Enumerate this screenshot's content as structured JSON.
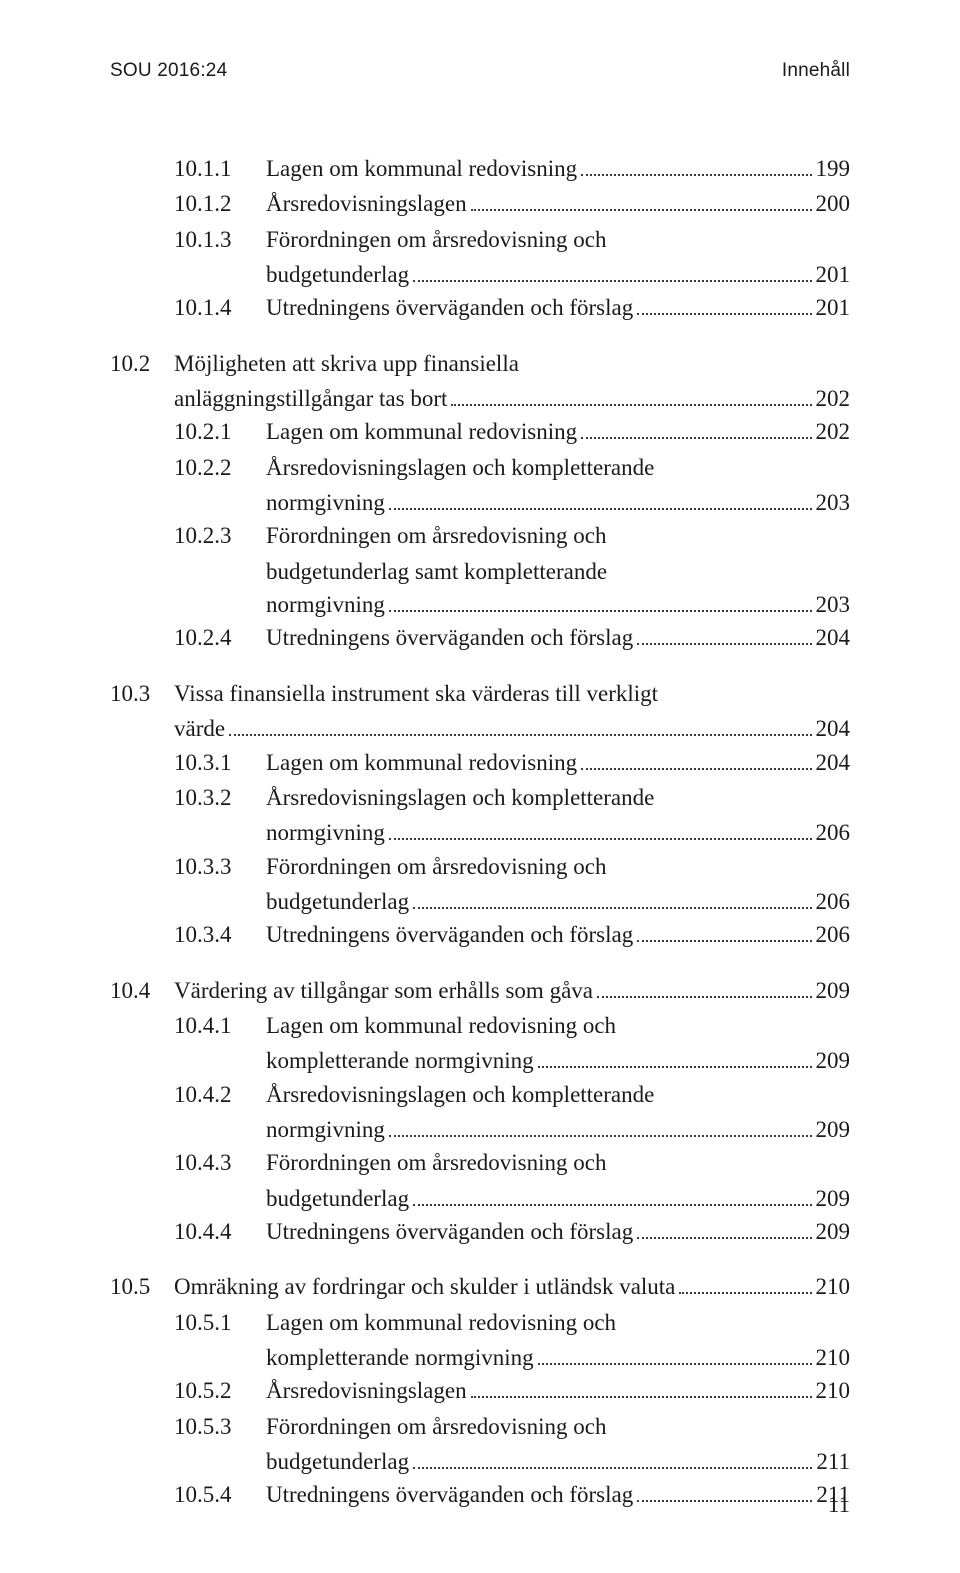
{
  "header": {
    "left": "SOU 2016:24",
    "right": "Innehåll"
  },
  "page_number": "11",
  "sections": [
    {
      "entries": [
        {
          "num": "10.1.1",
          "text": "Lagen om kommunal redovisning",
          "page": "199",
          "level": "sub"
        },
        {
          "num": "10.1.2",
          "text": "Årsredovisningslagen",
          "page": "200",
          "level": "sub"
        },
        {
          "num": "10.1.3",
          "text_lines": [
            "Förordningen om årsredovisning och",
            "budgetunderlag"
          ],
          "page": "201",
          "level": "sub"
        },
        {
          "num": "10.1.4",
          "text": "Utredningens överväganden och förslag",
          "page": "201",
          "level": "sub"
        }
      ]
    },
    {
      "entries": [
        {
          "num": "10.2",
          "text_lines": [
            "Möjligheten att skriva upp finansiella",
            "anläggningstillgångar tas bort"
          ],
          "page": "202",
          "level": "top"
        },
        {
          "num": "10.2.1",
          "text": "Lagen om kommunal redovisning",
          "page": "202",
          "level": "sub"
        },
        {
          "num": "10.2.2",
          "text_lines": [
            "Årsredovisningslagen och kompletterande",
            "normgivning"
          ],
          "page": "203",
          "level": "sub"
        },
        {
          "num": "10.2.3",
          "text_lines": [
            "Förordningen om årsredovisning och",
            "budgetunderlag samt kompletterande",
            "normgivning"
          ],
          "page": "203",
          "level": "sub"
        },
        {
          "num": "10.2.4",
          "text": "Utredningens överväganden och förslag",
          "page": "204",
          "level": "sub"
        }
      ]
    },
    {
      "entries": [
        {
          "num": "10.3",
          "text_lines": [
            "Vissa finansiella instrument ska värderas till verkligt",
            "värde"
          ],
          "page": "204",
          "level": "top"
        },
        {
          "num": "10.3.1",
          "text": "Lagen om kommunal redovisning",
          "page": "204",
          "level": "sub"
        },
        {
          "num": "10.3.2",
          "text_lines": [
            "Årsredovisningslagen och kompletterande",
            "normgivning"
          ],
          "page": "206",
          "level": "sub"
        },
        {
          "num": "10.3.3",
          "text_lines": [
            "Förordningen om årsredovisning och",
            "budgetunderlag"
          ],
          "page": "206",
          "level": "sub"
        },
        {
          "num": "10.3.4",
          "text": "Utredningens överväganden och förslag",
          "page": "206",
          "level": "sub"
        }
      ]
    },
    {
      "entries": [
        {
          "num": "10.4",
          "text": "Värdering av tillgångar som erhålls som gåva",
          "page": "209",
          "level": "top"
        },
        {
          "num": "10.4.1",
          "text_lines": [
            "Lagen om kommunal redovisning och",
            "kompletterande normgivning"
          ],
          "page": "209",
          "level": "sub"
        },
        {
          "num": "10.4.2",
          "text_lines": [
            "Årsredovisningslagen och kompletterande",
            "normgivning"
          ],
          "page": "209",
          "level": "sub"
        },
        {
          "num": "10.4.3",
          "text_lines": [
            "Förordningen om årsredovisning och",
            "budgetunderlag"
          ],
          "page": "209",
          "level": "sub"
        },
        {
          "num": "10.4.4",
          "text": "Utredningens överväganden och förslag",
          "page": "209",
          "level": "sub"
        }
      ]
    },
    {
      "entries": [
        {
          "num": "10.5",
          "text": "Omräkning av fordringar och skulder i utländsk valuta",
          "page": "210",
          "level": "top"
        },
        {
          "num": "10.5.1",
          "text_lines": [
            "Lagen om kommunal redovisning och",
            "kompletterande normgivning"
          ],
          "page": "210",
          "level": "sub"
        },
        {
          "num": "10.5.2",
          "text": "Årsredovisningslagen",
          "page": "210",
          "level": "sub"
        },
        {
          "num": "10.5.3",
          "text_lines": [
            "Förordningen om årsredovisning och",
            "budgetunderlag"
          ],
          "page": "211",
          "level": "sub"
        },
        {
          "num": "10.5.4",
          "text": "Utredningens överväganden och förslag",
          "page": "211",
          "level": "sub"
        }
      ]
    }
  ]
}
